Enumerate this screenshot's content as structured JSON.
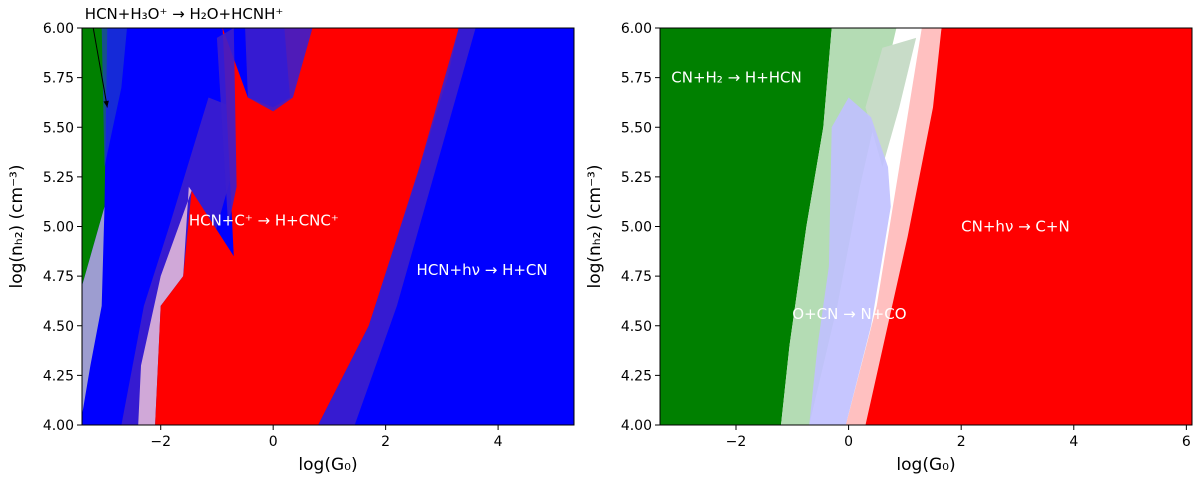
{
  "chart_data": [
    {
      "type": "area",
      "title": "",
      "xlabel": "log(G₀)",
      "ylabel": "log(nₕ₂) (cm⁻³)",
      "xlim": [
        -3.4,
        5.35
      ],
      "ylim": [
        4.0,
        6.0
      ],
      "xticks": [
        -2,
        0,
        2,
        4
      ],
      "xtick_labels": [
        "−2",
        "0",
        "2",
        "4"
      ],
      "yticks": [
        4.0,
        4.25,
        4.5,
        4.75,
        5.0,
        5.25,
        5.5,
        5.75,
        6.0
      ],
      "ytick_labels": [
        "4.00",
        "4.25",
        "4.50",
        "4.75",
        "5.00",
        "5.25",
        "5.50",
        "5.75",
        "6.00"
      ],
      "background_color": "#0000ff",
      "regions": [
        {
          "color": "#008000",
          "opacity": 1,
          "points": [
            [
              -3.4,
              4.0
            ],
            [
              -3.4,
              6.0
            ],
            [
              -2.95,
              6.0
            ],
            [
              -3.0,
              5.1
            ],
            [
              -3.4,
              4.7
            ]
          ]
        },
        {
          "color": "#b8b8c8",
          "opacity": 0.85,
          "points": [
            [
              -3.4,
              4.05
            ],
            [
              -3.4,
              4.7
            ],
            [
              -3.0,
              5.1
            ],
            [
              -3.05,
              4.6
            ],
            [
              -3.25,
              4.3
            ]
          ]
        },
        {
          "color": "#1e3cc8",
          "opacity": 0.7,
          "points": [
            [
              -3.05,
              6.0
            ],
            [
              -2.6,
              6.0
            ],
            [
              -2.7,
              5.7
            ],
            [
              -2.85,
              5.5
            ],
            [
              -3.0,
              5.3
            ]
          ]
        },
        {
          "color": "#3c1ecc",
          "opacity": 0.9,
          "points": [
            [
              -2.7,
              4.0
            ],
            [
              -2.1,
              4.0
            ],
            [
              -1.4,
              4.6
            ],
            [
              -0.7,
              5.3
            ],
            [
              -0.7,
              5.6
            ],
            [
              -1.15,
              5.65
            ],
            [
              -1.85,
              5.0
            ],
            [
              -2.3,
              4.6
            ]
          ]
        },
        {
          "color": "#d0a8d8",
          "opacity": 1,
          "points": [
            [
              -2.4,
              4.0
            ],
            [
              -2.1,
              4.0
            ],
            [
              -2.0,
              4.6
            ],
            [
              -1.6,
              4.75
            ],
            [
              -1.5,
              5.2
            ],
            [
              -1.45,
              5.18
            ],
            [
              -2.0,
              4.75
            ],
            [
              -2.35,
              4.3
            ]
          ]
        },
        {
          "color": "#ff0000",
          "opacity": 1,
          "points": [
            [
              -2.1,
              4.0
            ],
            [
              0.8,
              4.0
            ],
            [
              1.7,
              4.5
            ],
            [
              2.5,
              5.2
            ],
            [
              3.1,
              5.75
            ],
            [
              3.3,
              6.0
            ],
            [
              0.2,
              6.0
            ],
            [
              0.3,
              5.65
            ],
            [
              0.0,
              5.6
            ],
            [
              -0.45,
              5.65
            ],
            [
              -0.9,
              6.0
            ],
            [
              -0.7,
              4.85
            ],
            [
              -1.45,
              5.18
            ],
            [
              -1.6,
              4.75
            ],
            [
              -2.0,
              4.6
            ]
          ]
        },
        {
          "color": "#3c1ecc",
          "opacity": 0.9,
          "points": [
            [
              0.8,
              4.0
            ],
            [
              1.45,
              4.0
            ],
            [
              2.2,
              4.6
            ],
            [
              3.0,
              5.4
            ],
            [
              3.6,
              6.0
            ],
            [
              3.3,
              6.0
            ],
            [
              2.6,
              5.3
            ],
            [
              1.7,
              4.5
            ]
          ]
        },
        {
          "color": "#3c1ecc",
          "opacity": 0.9,
          "points": [
            [
              -0.5,
              6.0
            ],
            [
              0.7,
              6.0
            ],
            [
              0.35,
              5.65
            ],
            [
              0.0,
              5.58
            ],
            [
              -0.45,
              5.65
            ]
          ]
        },
        {
          "color": "#3c1ecc",
          "opacity": 0.9,
          "points": [
            [
              -1.0,
              5.95
            ],
            [
              -0.7,
              6.0
            ],
            [
              -0.65,
              5.2
            ],
            [
              -0.8,
              5.0
            ]
          ]
        }
      ],
      "annotations": [
        {
          "text": "HCN+H₃O⁺ → H₂O+HCNH⁺",
          "x": -3.35,
          "y": 6.04,
          "color": "#000000",
          "outside": true
        },
        {
          "text": "HCN+C⁺ → H+CNC⁺",
          "x": -1.5,
          "y": 5.03,
          "color": "#ffffff"
        },
        {
          "text": "HCN+hν → H+CN",
          "x": 2.55,
          "y": 4.78,
          "color": "#ffffff"
        }
      ],
      "arrow": {
        "from": [
          -3.2,
          6.0
        ],
        "to": [
          -2.95,
          5.6
        ],
        "color": "#000000"
      }
    },
    {
      "type": "area",
      "title": "",
      "xlabel": "log(G₀)",
      "ylabel": "log(nₕ₂) (cm⁻³)",
      "xlim": [
        -3.35,
        6.1
      ],
      "ylim": [
        4.0,
        6.0
      ],
      "xticks": [
        -2,
        0,
        2,
        4,
        6
      ],
      "xtick_labels": [
        "−2",
        "0",
        "2",
        "4",
        "6"
      ],
      "yticks": [
        4.0,
        4.25,
        4.5,
        4.75,
        5.0,
        5.25,
        5.5,
        5.75,
        6.0
      ],
      "ytick_labels": [
        "4.00",
        "4.25",
        "4.50",
        "4.75",
        "5.00",
        "5.25",
        "5.50",
        "5.75",
        "6.00"
      ],
      "background_color": "#ffffff",
      "regions": [
        {
          "color": "#ff0000",
          "opacity": 1,
          "points": [
            [
              -0.05,
              4.0
            ],
            [
              6.1,
              4.0
            ],
            [
              6.1,
              6.0
            ],
            [
              1.65,
              6.0
            ],
            [
              1.3,
              5.5
            ],
            [
              0.8,
              4.8
            ],
            [
              0.4,
              4.4
            ]
          ]
        },
        {
          "color": "#ffc0c0",
          "opacity": 1,
          "points": [
            [
              -0.05,
              4.0
            ],
            [
              0.3,
              4.0
            ],
            [
              1.05,
              4.95
            ],
            [
              1.5,
              5.6
            ],
            [
              1.65,
              6.0
            ],
            [
              1.3,
              6.0
            ],
            [
              0.9,
              5.3
            ],
            [
              0.5,
              4.6
            ]
          ]
        },
        {
          "color": "#008000",
          "opacity": 1,
          "points": [
            [
              -3.35,
              4.0
            ],
            [
              -3.35,
              6.0
            ],
            [
              -0.3,
              6.0
            ],
            [
              -0.45,
              5.5
            ],
            [
              -0.75,
              5.0
            ],
            [
              -1.05,
              4.4
            ],
            [
              -1.2,
              4.0
            ]
          ]
        },
        {
          "color": "#b4dcb4",
          "opacity": 1,
          "points": [
            [
              -1.2,
              4.0
            ],
            [
              -0.7,
              4.0
            ],
            [
              -0.2,
              4.6
            ],
            [
              0.2,
              5.2
            ],
            [
              0.6,
              5.7
            ],
            [
              0.85,
              6.0
            ],
            [
              -0.3,
              6.0
            ],
            [
              -0.45,
              5.5
            ],
            [
              -0.75,
              5.0
            ],
            [
              -1.05,
              4.4
            ]
          ]
        },
        {
          "color": "#c8dcc8",
          "opacity": 1,
          "points": [
            [
              0.3,
              5.6
            ],
            [
              0.6,
              5.9
            ],
            [
              1.2,
              5.95
            ],
            [
              0.9,
              5.6
            ],
            [
              0.6,
              5.3
            ]
          ]
        },
        {
          "color": "#c0c0ff",
          "opacity": 0.9,
          "points": [
            [
              -0.7,
              4.0
            ],
            [
              -0.05,
              4.0
            ],
            [
              0.4,
              4.5
            ],
            [
              0.75,
              5.1
            ],
            [
              0.7,
              5.3
            ],
            [
              0.4,
              5.55
            ],
            [
              0.0,
              5.65
            ],
            [
              -0.3,
              5.5
            ],
            [
              -0.35,
              4.8
            ],
            [
              -0.55,
              4.4
            ]
          ]
        }
      ],
      "annotations": [
        {
          "text": "CN+H₂ → H+HCN",
          "x": -3.15,
          "y": 5.75,
          "color": "#ffffff"
        },
        {
          "text": "O+CN → N+CO",
          "x": -1.0,
          "y": 4.56,
          "color": "#ffffff"
        },
        {
          "text": "CN+hν → C+N",
          "x": 2.0,
          "y": 5.0,
          "color": "#ffffff"
        }
      ]
    }
  ]
}
